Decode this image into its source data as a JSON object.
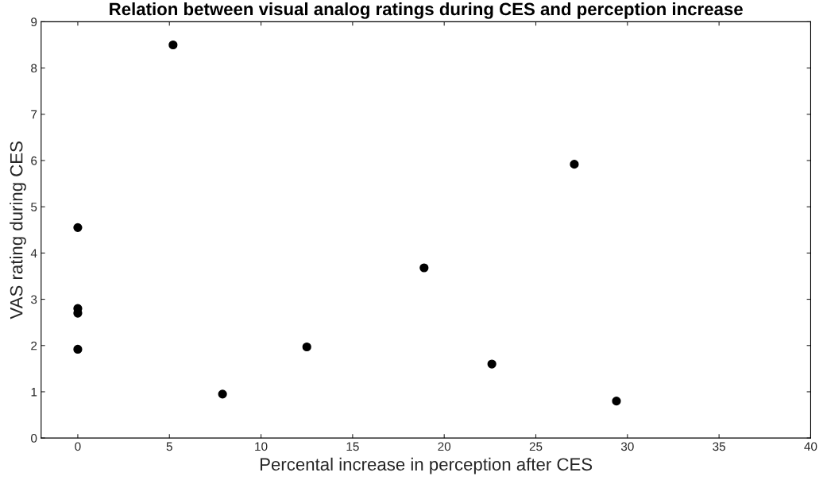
{
  "chart_data": {
    "type": "scatter",
    "title": "Relation between visual analog ratings during CES and perception increase",
    "xlabel": "Percental increase in perception after CES",
    "ylabel": "VAS rating during CES",
    "x": [
      0,
      0,
      0,
      0,
      5.2,
      7.9,
      12.5,
      18.9,
      22.6,
      27.1,
      29.4
    ],
    "series": [
      {
        "color": "#000000",
        "values": [
          4.55,
          2.8,
          2.7,
          1.92,
          8.5,
          0.95,
          1.97,
          3.68,
          1.6,
          5.92,
          0.8
        ]
      }
    ],
    "xlim": [
      -2,
      40
    ],
    "xticks": [
      0,
      5,
      10,
      15,
      20,
      25,
      30,
      35,
      40
    ],
    "ylim": [
      0,
      9
    ],
    "yticks": [
      0,
      1,
      2,
      3,
      4,
      5,
      6,
      7,
      8,
      9
    ],
    "grid": false,
    "legend": false,
    "marker": "circle"
  }
}
